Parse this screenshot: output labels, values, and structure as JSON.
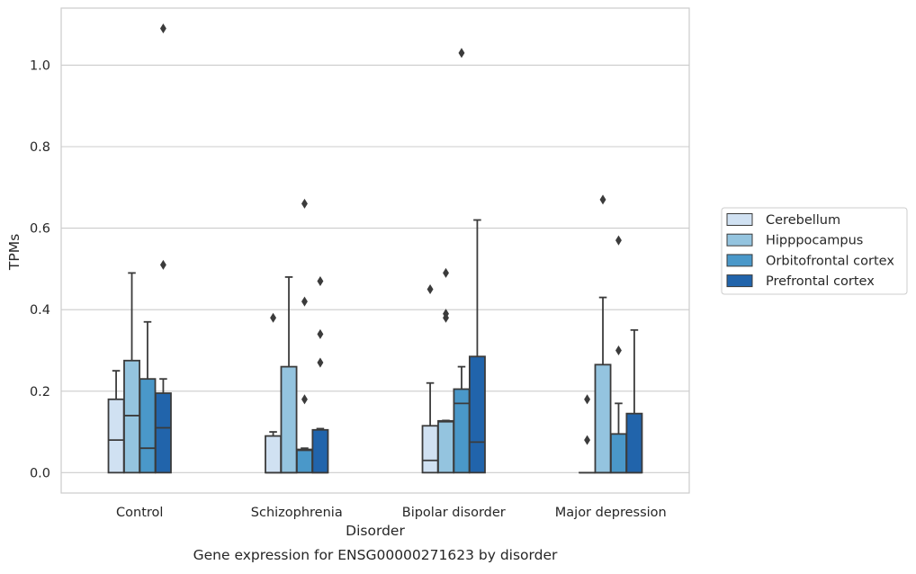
{
  "caption": "Gene expression for ENSG00000271623 by disorder",
  "chart_data": {
    "type": "boxplot",
    "xlabel": "Disorder",
    "ylabel": "TPMs",
    "ylim": [
      -0.05,
      1.14
    ],
    "yticks": [
      0.0,
      0.2,
      0.4,
      0.6,
      0.8,
      1.0
    ],
    "ytick_labels": [
      "0.0",
      "0.2",
      "0.4",
      "0.6",
      "0.8",
      "1.0"
    ],
    "categories": [
      "Control",
      "Schizophrenia",
      "Bipolar disorder",
      "Major depression"
    ],
    "grid": "horizontal",
    "legend_position": "right",
    "series": [
      {
        "name": "Cerebellum",
        "color": "#d0e1f2",
        "boxes": [
          {
            "whislo": 0.0,
            "q1": 0.0,
            "med": 0.08,
            "q3": 0.18,
            "whishi": 0.25,
            "fliers": []
          },
          {
            "whislo": 0.0,
            "q1": 0.0,
            "med": 0.0,
            "q3": 0.09,
            "whishi": 0.1,
            "fliers": [
              0.38
            ]
          },
          {
            "whislo": 0.0,
            "q1": 0.0,
            "med": 0.03,
            "q3": 0.115,
            "whishi": 0.22,
            "fliers": [
              0.45
            ]
          },
          {
            "whislo": 0.0,
            "q1": 0.0,
            "med": 0.0,
            "q3": 0.0,
            "whishi": 0.0,
            "fliers": [
              0.08,
              0.18
            ]
          }
        ]
      },
      {
        "name": "Hipppocampus",
        "color": "#94c4df",
        "boxes": [
          {
            "whislo": 0.0,
            "q1": 0.0,
            "med": 0.14,
            "q3": 0.275,
            "whishi": 0.49,
            "fliers": []
          },
          {
            "whislo": 0.0,
            "q1": 0.0,
            "med": 0.0,
            "q3": 0.26,
            "whishi": 0.48,
            "fliers": []
          },
          {
            "whislo": 0.0,
            "q1": 0.0,
            "med": 0.125,
            "q3": 0.127,
            "whishi": 0.128,
            "fliers": [
              0.38,
              0.39,
              0.49
            ]
          },
          {
            "whislo": 0.0,
            "q1": 0.0,
            "med": 0.0,
            "q3": 0.265,
            "whishi": 0.43,
            "fliers": [
              0.67
            ]
          }
        ]
      },
      {
        "name": "Orbitofrontal cortex",
        "color": "#4a98c9",
        "boxes": [
          {
            "whislo": 0.0,
            "q1": 0.0,
            "med": 0.06,
            "q3": 0.23,
            "whishi": 0.37,
            "fliers": []
          },
          {
            "whislo": 0.0,
            "q1": 0.0,
            "med": 0.055,
            "q3": 0.057,
            "whishi": 0.06,
            "fliers": [
              0.18,
              0.42,
              0.66
            ]
          },
          {
            "whislo": 0.0,
            "q1": 0.0,
            "med": 0.17,
            "q3": 0.205,
            "whishi": 0.26,
            "fliers": [
              1.03
            ]
          },
          {
            "whislo": 0.0,
            "q1": 0.0,
            "med": 0.0,
            "q3": 0.095,
            "whishi": 0.17,
            "fliers": [
              0.3,
              0.57
            ]
          }
        ]
      },
      {
        "name": "Prefrontal cortex",
        "color": "#2164ab",
        "boxes": [
          {
            "whislo": 0.0,
            "q1": 0.0,
            "med": 0.11,
            "q3": 0.195,
            "whishi": 0.23,
            "fliers": [
              0.51,
              1.09
            ]
          },
          {
            "whislo": 0.0,
            "q1": 0.0,
            "med": 0.0,
            "q3": 0.105,
            "whishi": 0.108,
            "fliers": [
              0.27,
              0.34,
              0.47
            ]
          },
          {
            "whislo": 0.0,
            "q1": 0.0,
            "med": 0.075,
            "q3": 0.285,
            "whishi": 0.62,
            "fliers": []
          },
          {
            "whislo": 0.0,
            "q1": 0.0,
            "med": 0.0,
            "q3": 0.145,
            "whishi": 0.35,
            "fliers": []
          }
        ]
      }
    ]
  }
}
